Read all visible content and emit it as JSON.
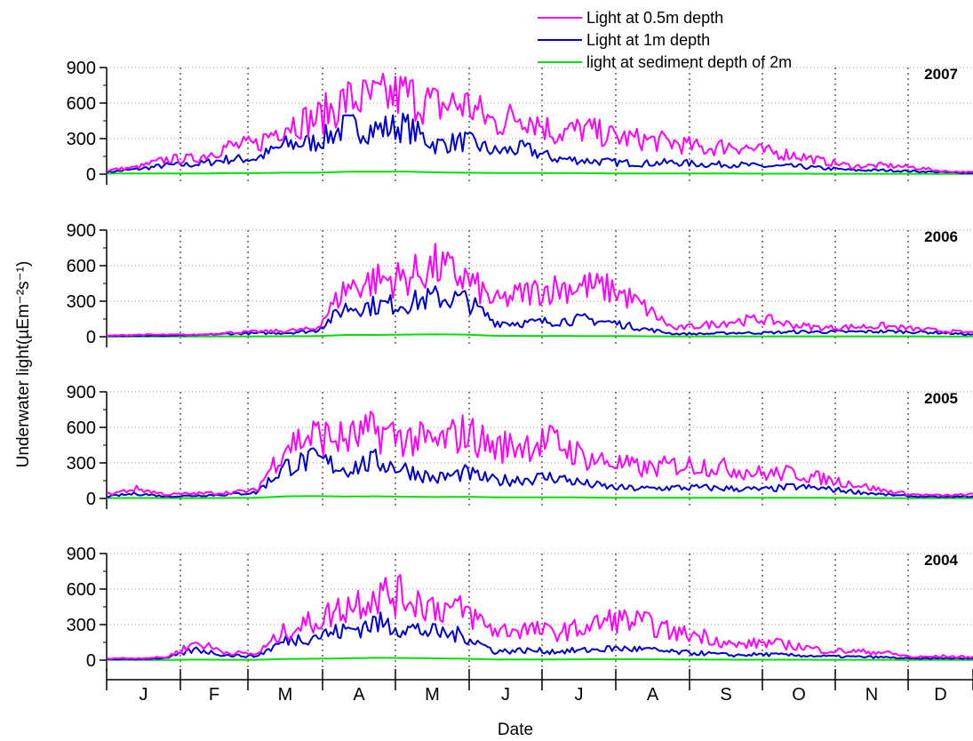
{
  "chart_data": {
    "type": "line",
    "xlabel": "Date",
    "ylabel": "Underwater light(µEm⁻²s⁻¹)",
    "ylim": [
      0,
      900
    ],
    "yticks": [
      "0",
      "300",
      "600",
      "900"
    ],
    "months": [
      "J",
      "F",
      "M",
      "A",
      "M",
      "J",
      "J",
      "A",
      "S",
      "O",
      "N",
      "D"
    ],
    "grid": "dotted horizontal gridlines, dotted vertical month dividers",
    "legend": {
      "position": "top",
      "entries": [
        {
          "label": "Light at 0.5m depth",
          "color": "#ff00ff"
        },
        {
          "label": "Light at 1m depth",
          "color": "#0000cc"
        },
        {
          "label": "light at sediment depth of 2m",
          "color": "#00e000"
        }
      ]
    },
    "panels": [
      {
        "year": "2007",
        "series": [
          {
            "name": "Light at 0.5m depth",
            "color": "#ff00ff",
            "values": [
              40,
              70,
              150,
              160,
              280,
              300,
              520,
              560,
              760,
              770,
              820,
              700,
              720,
              520,
              620,
              420,
              460,
              380,
              350,
              320,
              260,
              300,
              230,
              200,
              130,
              80,
              90,
              70,
              30,
              20
            ]
          },
          {
            "name": "Light at 1m depth",
            "color": "#0000cc",
            "values": [
              20,
              50,
              90,
              100,
              150,
              160,
              300,
              330,
              480,
              460,
              490,
              300,
              340,
              230,
              260,
              160,
              140,
              120,
              110,
              120,
              100,
              100,
              80,
              80,
              60,
              40,
              40,
              30,
              20,
              10
            ]
          },
          {
            "name": "light at sediment depth of 2m",
            "color": "#00e000",
            "values": [
              5,
              5,
              5,
              5,
              8,
              8,
              12,
              12,
              20,
              20,
              22,
              15,
              12,
              10,
              10,
              8,
              8,
              6,
              6,
              5,
              5,
              5,
              4,
              4,
              3,
              3,
              3,
              3,
              2,
              2
            ]
          }
        ]
      },
      {
        "year": "2006",
        "series": [
          {
            "name": "Light at 0.5m depth",
            "color": "#ff00ff",
            "values": [
              10,
              20,
              20,
              20,
              40,
              50,
              60,
              80,
              500,
              580,
              600,
              720,
              600,
              350,
              450,
              500,
              520,
              480,
              300,
              80,
              120,
              160,
              180,
              120,
              90,
              100,
              110,
              80,
              60,
              40
            ]
          },
          {
            "name": "Light at 1m depth",
            "color": "#0000cc",
            "values": [
              5,
              10,
              10,
              15,
              30,
              35,
              40,
              60,
              300,
              320,
              340,
              400,
              380,
              150,
              140,
              160,
              180,
              140,
              80,
              30,
              30,
              40,
              40,
              50,
              50,
              50,
              55,
              50,
              40,
              20
            ]
          },
          {
            "name": "light at sediment depth of 2m",
            "color": "#00e000",
            "values": [
              2,
              2,
              2,
              2,
              3,
              3,
              4,
              5,
              15,
              15,
              18,
              20,
              18,
              8,
              7,
              7,
              6,
              6,
              4,
              3,
              3,
              3,
              3,
              3,
              3,
              3,
              3,
              3,
              2,
              2
            ]
          }
        ]
      },
      {
        "year": "2005",
        "series": [
          {
            "name": "Light at 0.5m depth",
            "color": "#ff00ff",
            "values": [
              40,
              100,
              40,
              50,
              60,
              80,
              550,
              650,
              600,
              690,
              620,
              560,
              680,
              520,
              560,
              580,
              420,
              360,
              300,
              340,
              340,
              300,
              250,
              260,
              200,
              150,
              80,
              40,
              30,
              40
            ]
          },
          {
            "name": "Light at 1m depth",
            "color": "#0000cc",
            "values": [
              20,
              50,
              20,
              30,
              40,
              60,
              330,
              400,
              300,
              380,
              300,
              200,
              260,
              180,
              200,
              220,
              150,
              110,
              100,
              110,
              110,
              100,
              90,
              120,
              100,
              70,
              40,
              20,
              15,
              20
            ]
          },
          {
            "name": "light at sediment depth of 2m",
            "color": "#00e000",
            "values": [
              3,
              4,
              3,
              3,
              4,
              5,
              18,
              20,
              16,
              18,
              15,
              12,
              14,
              10,
              10,
              10,
              8,
              6,
              6,
              6,
              6,
              6,
              5,
              6,
              5,
              4,
              3,
              2,
              2,
              2
            ]
          }
        ]
      },
      {
        "year": "2004",
        "series": [
          {
            "name": "Light at 0.5m depth",
            "color": "#ff00ff",
            "values": [
              20,
              20,
              30,
              180,
              80,
              60,
              300,
              400,
              550,
              680,
              650,
              550,
              500,
              300,
              320,
              280,
              330,
              420,
              380,
              280,
              250,
              150,
              180,
              150,
              100,
              90,
              80,
              30,
              40,
              30
            ]
          },
          {
            "name": "Light at 1m depth",
            "color": "#0000cc",
            "values": [
              10,
              10,
              20,
              110,
              50,
              40,
              200,
              250,
              300,
              380,
              330,
              280,
              250,
              90,
              100,
              90,
              100,
              120,
              110,
              80,
              70,
              50,
              60,
              50,
              40,
              35,
              30,
              15,
              20,
              15
            ]
          },
          {
            "name": "light at sediment depth of 2m",
            "color": "#00e000",
            "values": [
              2,
              2,
              2,
              5,
              3,
              3,
              10,
              12,
              15,
              20,
              18,
              15,
              12,
              6,
              6,
              6,
              7,
              8,
              7,
              6,
              5,
              4,
              4,
              4,
              3,
              3,
              3,
              2,
              2,
              2
            ]
          }
        ]
      }
    ]
  },
  "colors": {
    "axis": "#000000",
    "grid": "#999999",
    "background": "#ffffff"
  }
}
